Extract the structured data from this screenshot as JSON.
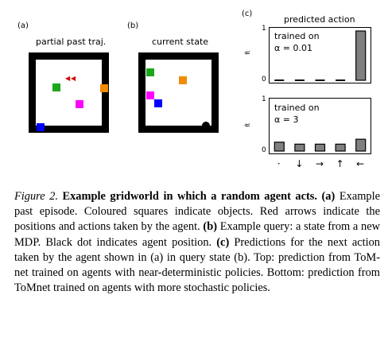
{
  "panels": {
    "a": {
      "letter": "(a)",
      "title": "partial past traj."
    },
    "b": {
      "letter": "(b)",
      "title": "current state"
    },
    "c": {
      "letter": "(c)",
      "title": "predicted action"
    }
  },
  "charts": {
    "ylabel": "π̂",
    "top": {
      "legend_line1": "trained on",
      "legend_line2": "α = 0.01",
      "y_tick_top": "1",
      "y_tick_bottom": "0"
    },
    "bottom": {
      "legend_line1": "trained on",
      "legend_line2": "α = 3",
      "y_tick_top": "1",
      "y_tick_bottom": "0"
    },
    "x_ticks": [
      "·",
      "↓",
      "→",
      "↑",
      "←"
    ]
  },
  "chart_data": [
    {
      "type": "bar",
      "categories": [
        "·",
        "↓",
        "→",
        "↑",
        "←"
      ],
      "values": [
        0.0,
        0.0,
        0.0,
        0.0,
        1.0
      ],
      "title": "predicted action",
      "ylabel": "π̂",
      "ylim": [
        0,
        1
      ],
      "legend": "trained on α = 0.01"
    },
    {
      "type": "bar",
      "categories": [
        "·",
        "↓",
        "→",
        "↑",
        "←"
      ],
      "values": [
        0.18,
        0.14,
        0.14,
        0.14,
        0.24
      ],
      "ylabel": "π̂",
      "ylim": [
        0,
        1
      ],
      "legend": "trained on α = 3"
    }
  ],
  "colors": {
    "bar_fill": "#808080",
    "green_object": "#1aa71a",
    "orange_object": "#f08c00",
    "magenta_object": "#ff00ff",
    "blue_object": "#0000ff",
    "arrow_red": "#d40000",
    "agent": "#000000"
  },
  "caption": {
    "figure_label": "Figure 2.",
    "bold_title": "Example gridworld in which a random agent acts.",
    "part_a_label": "(a)",
    "part_a_text": "Example past episode. Coloured squares indicate objects. Red arrows indicate the positions and actions taken by the agent.",
    "part_b_label": "(b)",
    "part_b_text": "Example query: a state from a new MDP. Black dot indicates agent position.",
    "part_c_label": "(c)",
    "part_c_text": "Predictions for the next action taken by the agent shown in (a) in query state (b). Top: prediction from ToM-net trained on agents with near-deterministic policies. Bottom: prediction from ToMnet trained on agents with more stochastic policies."
  }
}
